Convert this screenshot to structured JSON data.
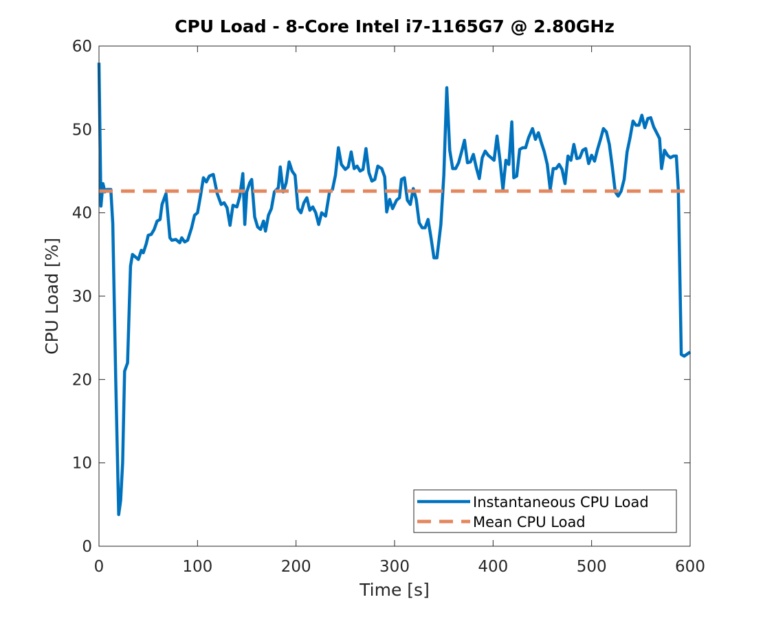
{
  "chart_data": {
    "type": "line",
    "title": "CPU Load - 8-Core Intel i7-1165G7 @ 2.80GHz",
    "xlabel": "Time [s]",
    "ylabel": "CPU Load [%]",
    "xlim": [
      0,
      600
    ],
    "ylim": [
      0,
      60
    ],
    "xticks": [
      0,
      100,
      200,
      300,
      400,
      500,
      600
    ],
    "yticks": [
      0,
      10,
      20,
      30,
      40,
      50,
      60
    ],
    "legend": "lower right",
    "series": [
      {
        "name": "Instantaneous CPU Load",
        "color": "#0072BD",
        "style": "solid",
        "x": [
          0,
          2,
          4,
          6,
          8,
          12,
          14,
          17,
          20,
          22,
          24,
          26,
          29,
          32,
          34,
          38,
          40,
          43,
          45,
          48,
          50,
          53,
          56,
          59,
          62,
          64,
          68,
          72,
          74,
          78,
          82,
          84,
          87,
          90,
          94,
          97,
          100,
          103,
          106,
          109,
          112,
          116,
          120,
          124,
          127,
          130,
          133,
          136,
          140,
          143,
          146,
          148,
          150,
          153,
          155,
          158,
          161,
          164,
          167,
          169,
          172,
          175,
          178,
          182,
          184,
          187,
          190,
          193,
          196,
          199,
          202,
          205,
          208,
          211,
          214,
          217,
          220,
          223,
          226,
          230,
          234,
          237,
          240,
          243,
          246,
          250,
          253,
          256,
          259,
          262,
          265,
          268,
          271,
          274,
          277,
          280,
          283,
          287,
          290,
          292,
          295,
          298,
          302,
          305,
          307,
          310,
          313,
          316,
          319,
          322,
          325,
          328,
          331,
          334,
          337,
          340,
          343,
          347,
          350,
          353,
          356,
          359,
          362,
          365,
          368,
          371,
          374,
          377,
          380,
          383,
          386,
          389,
          392,
          395,
          398,
          401,
          404,
          407,
          410,
          413,
          416,
          419,
          421,
          424,
          427,
          430,
          433,
          436,
          440,
          443,
          446,
          449,
          452,
          455,
          458,
          461,
          464,
          467,
          470,
          473,
          476,
          479,
          482,
          485,
          488,
          491,
          494,
          497,
          500,
          503,
          506,
          509,
          512,
          515,
          518,
          521,
          524,
          527,
          530,
          533,
          536,
          539,
          542,
          545,
          548,
          551,
          554,
          557,
          560,
          563,
          566,
          569,
          571,
          574,
          577,
          580,
          583,
          586,
          588,
          591,
          594,
          600
        ],
        "values": [
          58,
          40.8,
          43.5,
          42.5,
          42.8,
          42.8,
          38.7,
          20,
          3.8,
          5.5,
          10,
          21,
          22,
          33.6,
          35,
          34.6,
          34.4,
          35.5,
          35.2,
          36.3,
          37.3,
          37.4,
          38,
          39,
          39.2,
          41,
          42.3,
          37,
          36.7,
          36.8,
          36.4,
          37,
          36.5,
          36.7,
          38.2,
          39.7,
          40,
          42,
          44.2,
          43.7,
          44.4,
          44.6,
          42.3,
          41,
          41.2,
          40.6,
          38.5,
          40.9,
          40.7,
          42,
          44.7,
          38.6,
          42.5,
          43.6,
          44,
          39.5,
          38.3,
          38,
          39,
          37.8,
          39.7,
          40.5,
          42.5,
          43,
          45.5,
          42.5,
          43.6,
          46.1,
          45,
          44.5,
          40.5,
          40,
          41.2,
          41.8,
          40.3,
          40.7,
          40,
          38.6,
          40,
          39.6,
          42.5,
          42.8,
          44.5,
          47.8,
          45.8,
          45.2,
          45.5,
          47.3,
          45.3,
          45.6,
          45,
          45.2,
          47.7,
          44.8,
          43.8,
          44,
          45.6,
          45.3,
          44.3,
          40.1,
          41.6,
          40.5,
          41.5,
          41.8,
          44,
          44.2,
          41.5,
          41,
          42.9,
          41.6,
          38.8,
          38.2,
          38.2,
          39.2,
          37,
          34.6,
          34.6,
          38.6,
          44.5,
          55,
          47.5,
          45.3,
          45.3,
          46,
          47.3,
          48.7,
          46,
          46.1,
          47,
          45.4,
          44.1,
          46.6,
          47.4,
          46.9,
          46.6,
          46.3,
          49.2,
          46.3,
          42.8,
          46.3,
          45.8,
          50.9,
          44.2,
          44.4,
          47.6,
          47.8,
          47.8,
          49,
          50.1,
          48.8,
          49.6,
          48.4,
          47.3,
          45.8,
          42.8,
          45.3,
          45.3,
          45.8,
          45.2,
          43.5,
          46.8,
          46.3,
          48.2,
          46.5,
          46.6,
          47.5,
          47.7,
          45.9,
          46.9,
          46.2,
          47.6,
          48.8,
          50.1,
          49.7,
          48.2,
          45.5,
          42.5,
          42,
          42.6,
          44,
          47.3,
          49,
          51,
          50.5,
          50.5,
          51.7,
          50.2,
          51.3,
          51.4,
          50.3,
          49.6,
          48.9,
          45.3,
          47.5,
          46.9,
          46.6,
          46.8,
          46.8,
          42.8,
          23,
          22.8,
          23.3
        ]
      },
      {
        "name": "Mean CPU Load",
        "color": "#E3875F",
        "style": "dashed",
        "x": [
          0,
          600
        ],
        "values": [
          42.6,
          42.6
        ]
      }
    ]
  }
}
